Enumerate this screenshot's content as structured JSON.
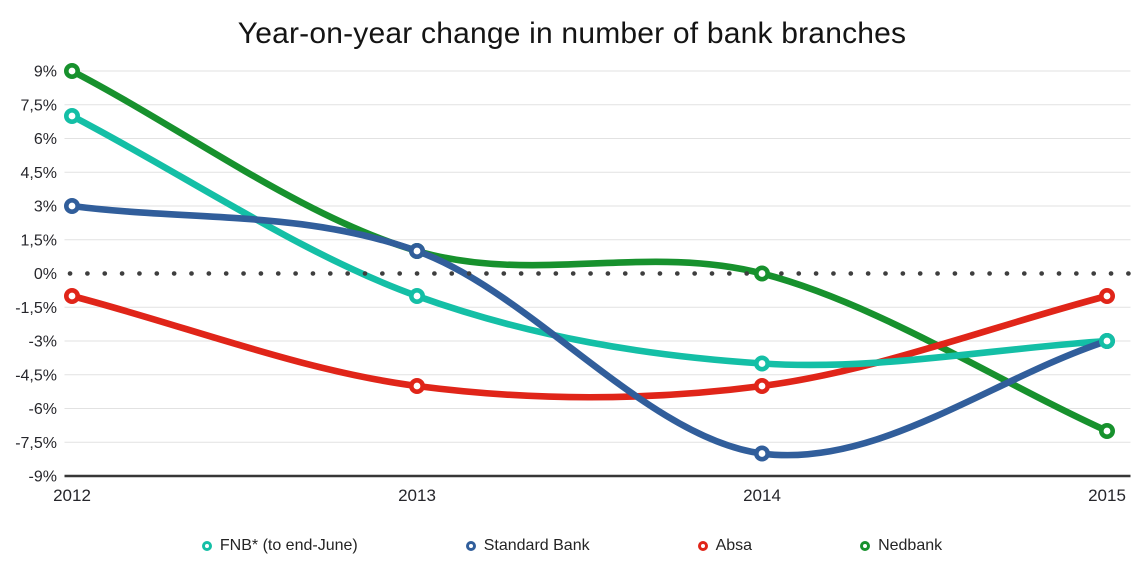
{
  "chart_data": {
    "type": "line",
    "title": "Year-on-year change in number of bank branches",
    "x_categories": [
      "2012",
      "2013",
      "2014",
      "2015"
    ],
    "value_unit": "%",
    "y_ticks": [
      {
        "value": 9,
        "label": "9%"
      },
      {
        "value": 7.5,
        "label": "7,5%"
      },
      {
        "value": 6,
        "label": "6%"
      },
      {
        "value": 4.5,
        "label": "4,5%"
      },
      {
        "value": 3,
        "label": "3%"
      },
      {
        "value": 1.5,
        "label": "1,5%"
      },
      {
        "value": 0,
        "label": "0%"
      },
      {
        "value": -1.5,
        "label": "-1,5%"
      },
      {
        "value": -3,
        "label": "-3%"
      },
      {
        "value": -4.5,
        "label": "-4,5%"
      },
      {
        "value": -6,
        "label": "-6%"
      },
      {
        "value": -7.5,
        "label": "-7,5%"
      },
      {
        "value": -9,
        "label": "-9%"
      }
    ],
    "ylim": [
      -9,
      9
    ],
    "grid": "horizontal",
    "zero_line_style": "dotted",
    "curve": "smooth",
    "legend_position": "bottom",
    "series": [
      {
        "id": "fnb",
        "name": "FNB* (to end-June)",
        "color": "#14BFA6",
        "values": [
          7,
          -1,
          -4,
          -3
        ]
      },
      {
        "id": "standard-bank",
        "name": "Standard Bank",
        "color": "#315E9B",
        "values": [
          3,
          1,
          -8,
          -3
        ]
      },
      {
        "id": "absa",
        "name": "Absa",
        "color": "#E02519",
        "values": [
          -1,
          -5,
          -5,
          -1
        ]
      },
      {
        "id": "nedbank",
        "name": "Nedbank",
        "color": "#17912D",
        "values": [
          9,
          1,
          0,
          -7
        ]
      }
    ],
    "style_colors": {
      "gridline": "#E2E2E2",
      "axis_line": "#373737",
      "zero_dots": "#3E3E3E",
      "tick_text": "#26262B",
      "title_text": "#141414"
    }
  }
}
